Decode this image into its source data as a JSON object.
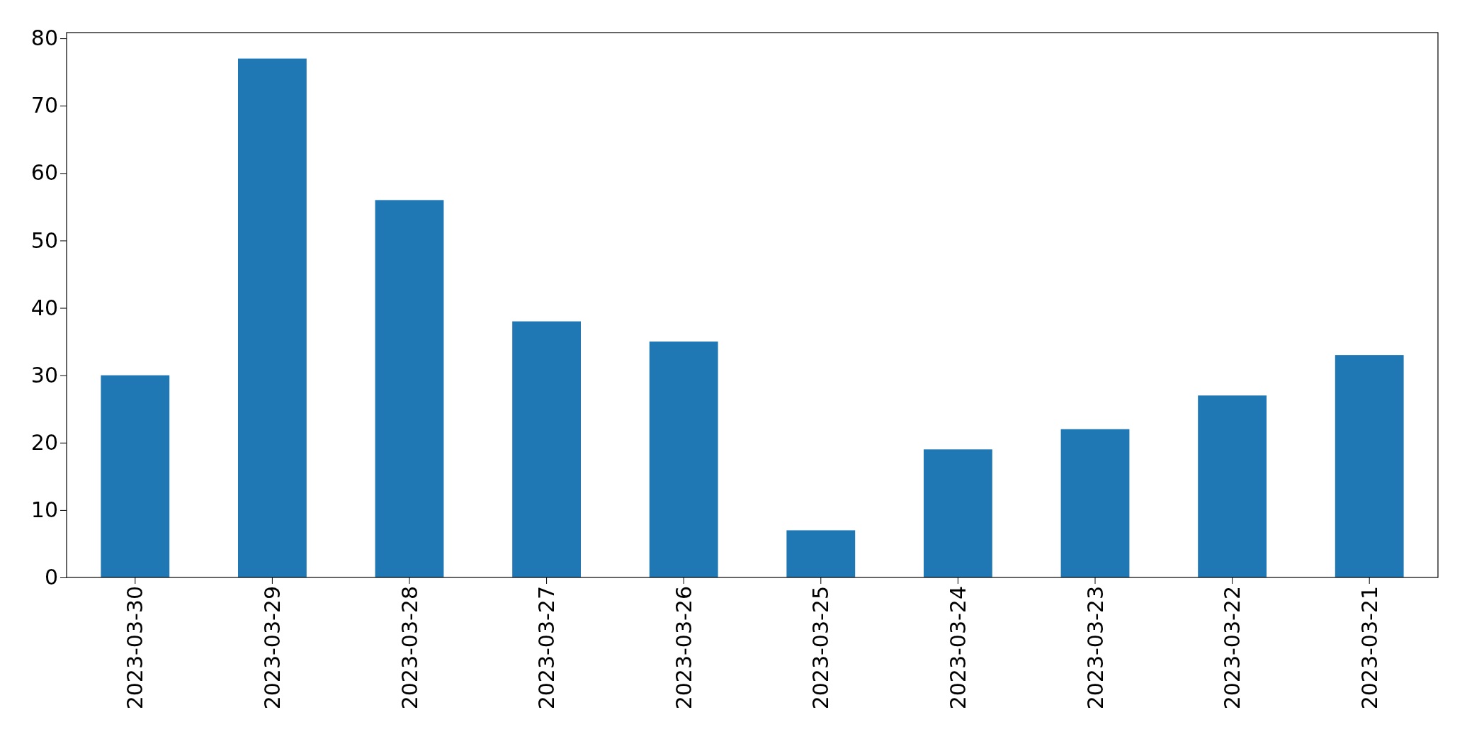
{
  "chart_data": {
    "type": "bar",
    "categories": [
      "2023-03-30",
      "2023-03-29",
      "2023-03-28",
      "2023-03-27",
      "2023-03-26",
      "2023-03-25",
      "2023-03-24",
      "2023-03-23",
      "2023-03-22",
      "2023-03-21"
    ],
    "values": [
      30,
      77,
      56,
      38,
      35,
      7,
      19,
      22,
      27,
      33
    ],
    "color": "#1f77b4",
    "ylim": [
      0,
      80.85
    ],
    "yticks": [
      0,
      10,
      20,
      30,
      40,
      50,
      60,
      70,
      80
    ],
    "grid": false
  }
}
